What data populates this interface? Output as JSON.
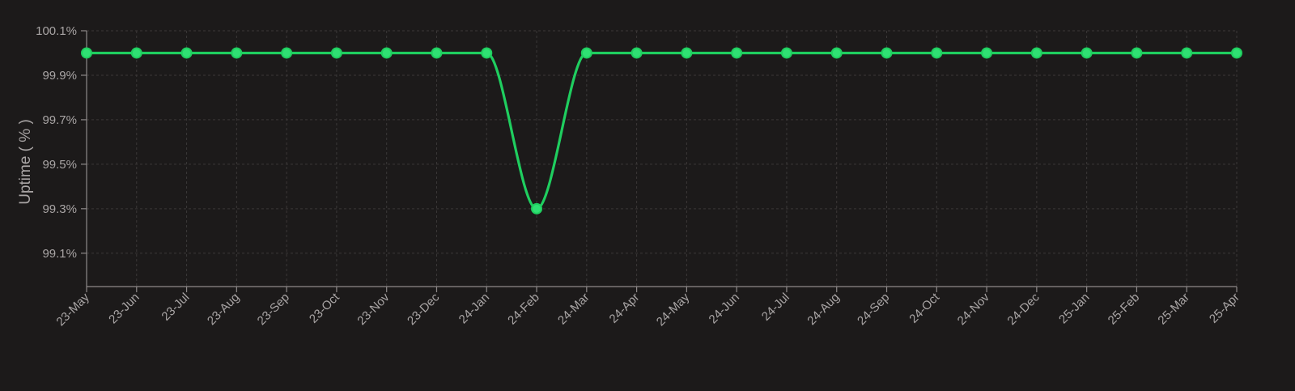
{
  "chart_data": {
    "type": "line",
    "title": "",
    "xlabel": "",
    "ylabel": "Uptime ( % )",
    "ylim": [
      98.95,
      100.1
    ],
    "yticks": [
      99.1,
      99.3,
      99.5,
      99.7,
      99.9,
      100.1
    ],
    "ytick_labels": [
      "99.1%",
      "99.3%",
      "99.5%",
      "99.7%",
      "99.9%",
      "100.1%"
    ],
    "categories": [
      "23-May",
      "23-Jun",
      "23-Jul",
      "23-Aug",
      "23-Sep",
      "23-Oct",
      "23-Nov",
      "23-Dec",
      "24-Jan",
      "24-Feb",
      "24-Mar",
      "24-Apr",
      "24-May",
      "24-Jun",
      "24-Jul",
      "24-Aug",
      "24-Sep",
      "24-Oct",
      "24-Nov",
      "24-Dec",
      "25-Jan",
      "25-Feb",
      "25-Mar",
      "25-Apr"
    ],
    "series": [
      {
        "values": [
          100,
          100,
          100,
          100,
          100,
          100,
          100,
          100,
          100,
          99.3,
          100,
          100,
          100,
          100,
          100,
          100,
          100,
          100,
          100,
          100,
          100,
          100,
          100,
          100
        ]
      }
    ],
    "grid": true,
    "line_style": "smooth",
    "colors": {
      "background": "#1c1a1a",
      "line": "#1fce5f",
      "point_fill": "#2fe073",
      "grid": "#3b3838",
      "axis": "#8e8a8a",
      "text": "#a9a5a5"
    }
  }
}
